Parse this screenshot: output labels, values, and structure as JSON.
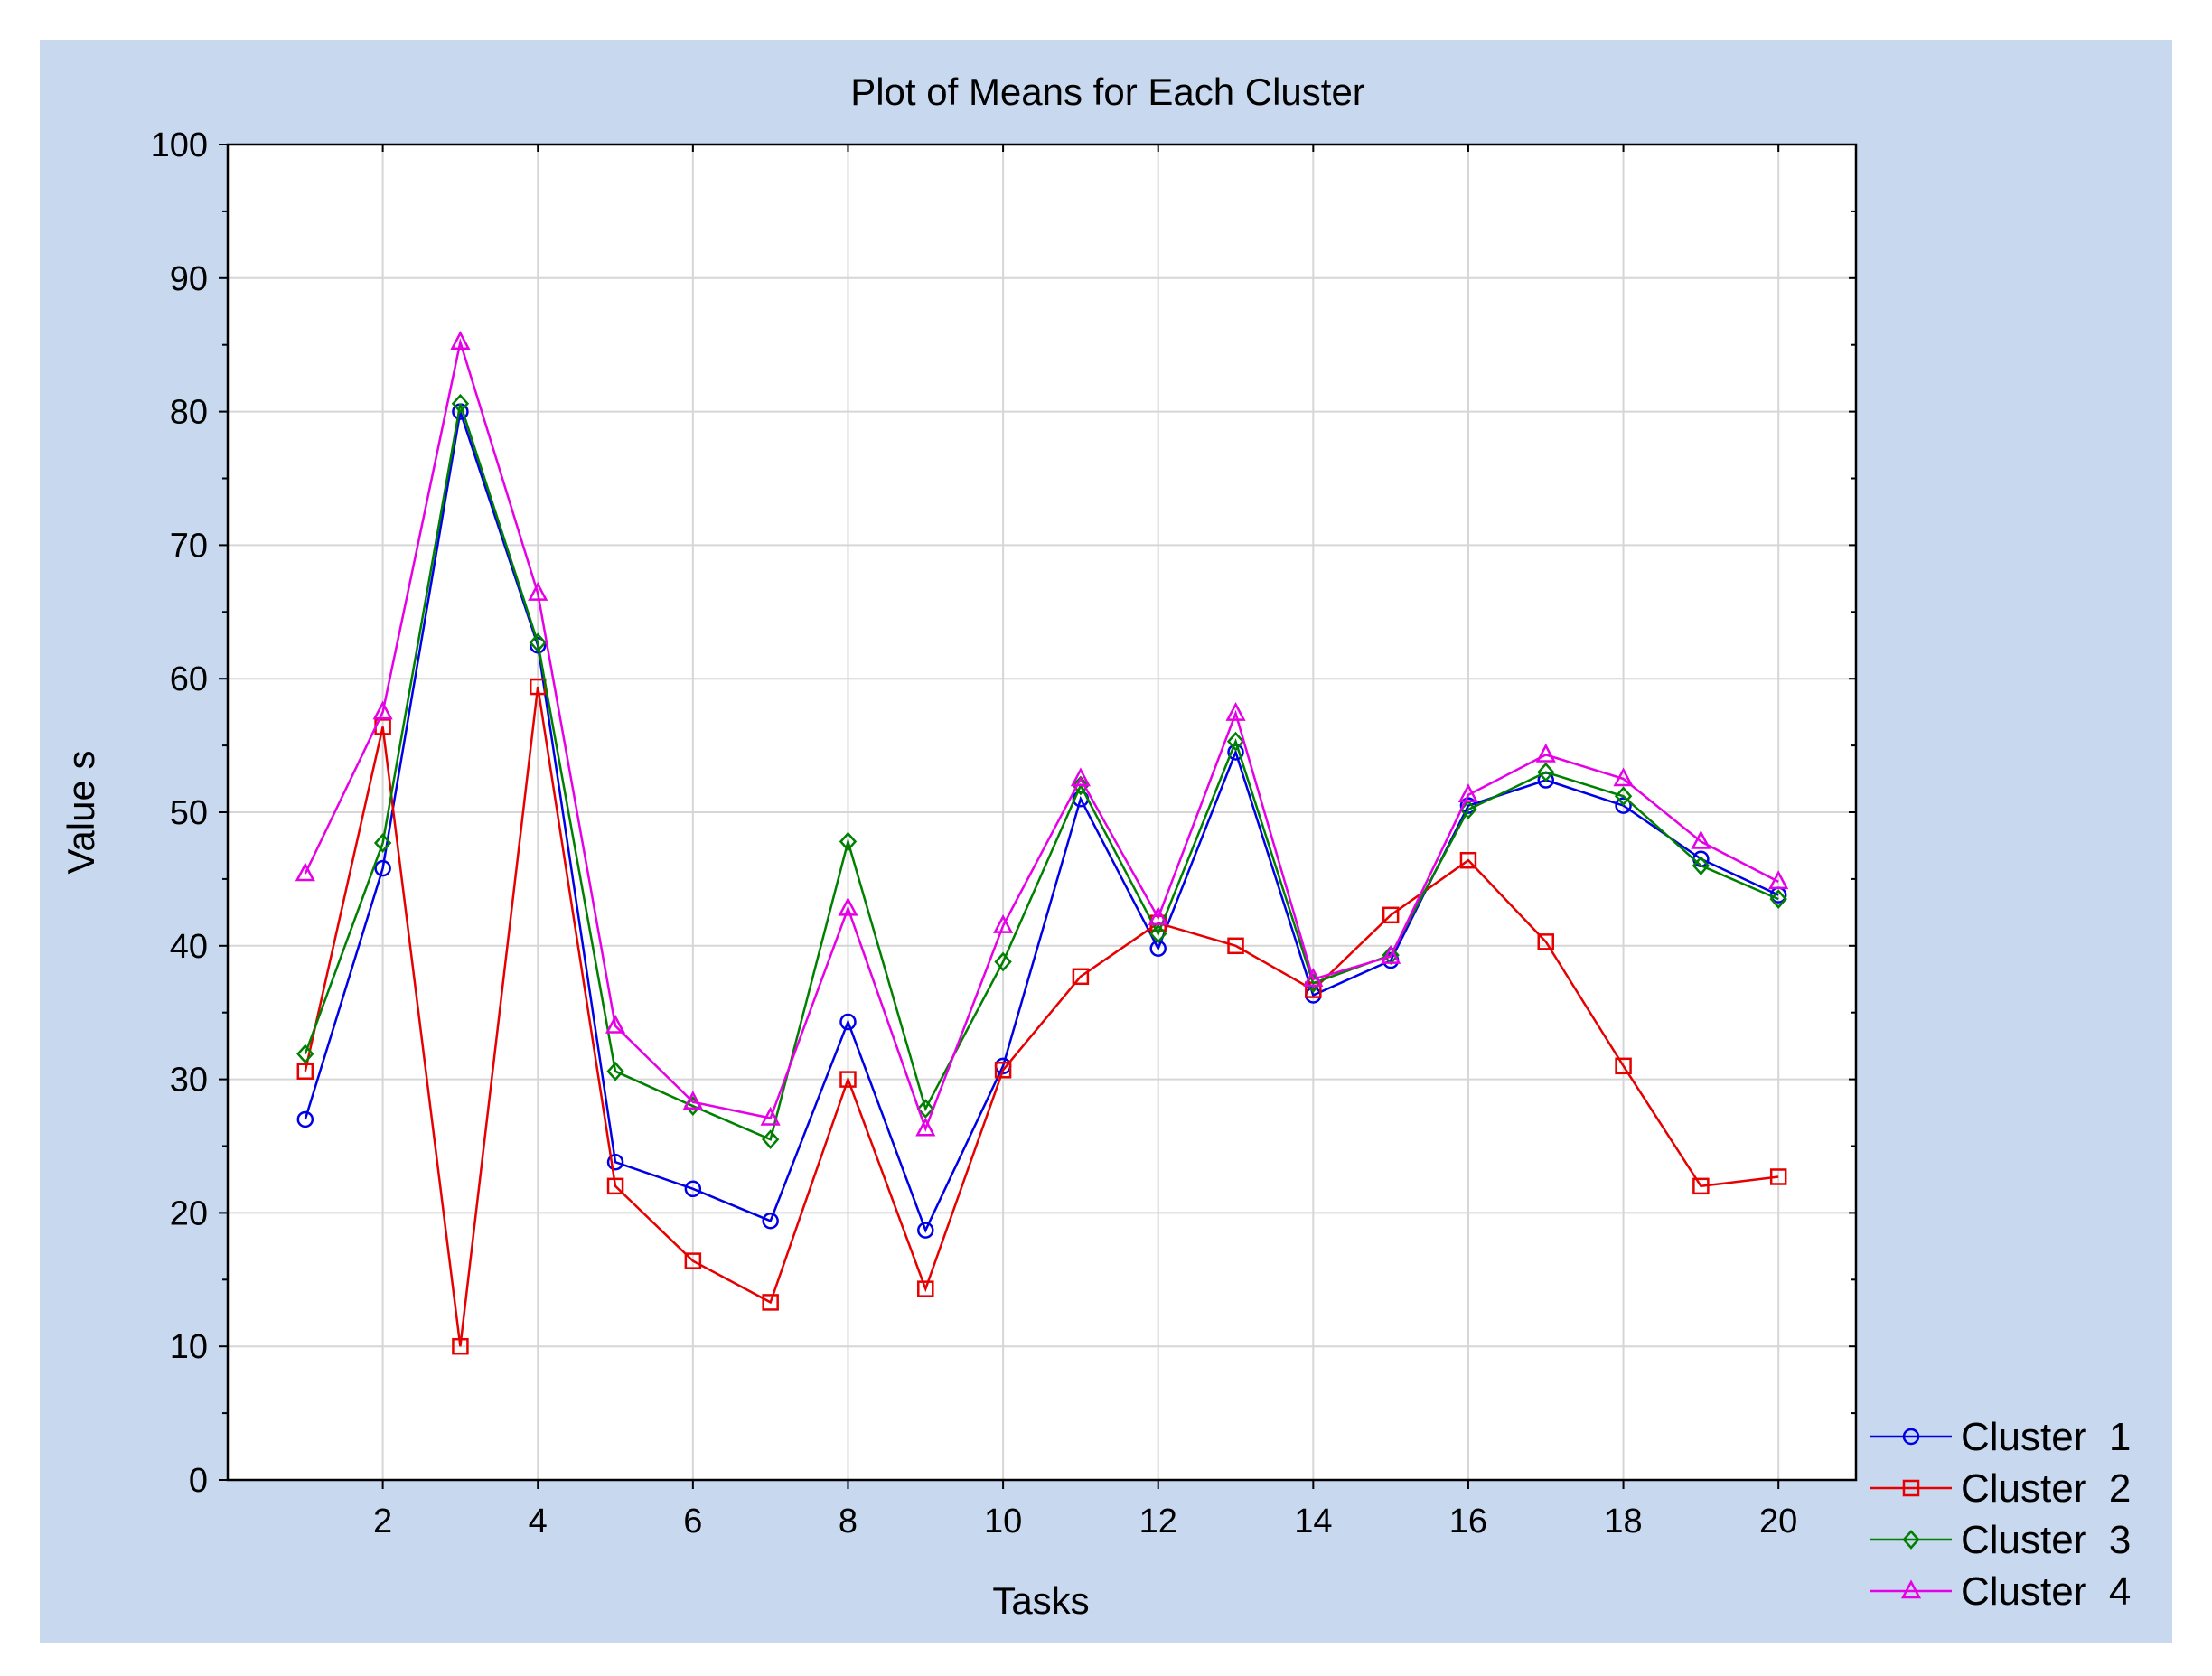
{
  "chart_data": {
    "type": "line",
    "title": "Plot of Means for Each Cluster",
    "xlabel": "Tasks",
    "ylabel": "Value s",
    "x": [
      1,
      2,
      3,
      4,
      5,
      6,
      7,
      8,
      9,
      10,
      11,
      12,
      13,
      14,
      15,
      16,
      17,
      18,
      19,
      20
    ],
    "xlim": [
      0,
      21
    ],
    "ylim": [
      0,
      100
    ],
    "xticks": [
      2,
      4,
      6,
      8,
      10,
      12,
      14,
      16,
      18,
      20
    ],
    "xtick_labels": [
      "2",
      "4",
      "6",
      "8",
      "10",
      "12",
      "14",
      "16",
      "18",
      "20"
    ],
    "yticks": [
      0,
      10,
      20,
      30,
      40,
      50,
      60,
      70,
      80,
      90,
      100
    ],
    "ytick_labels": [
      "0",
      "10",
      "20",
      "30",
      "40",
      "50",
      "60",
      "70",
      "80",
      "90",
      "100"
    ],
    "grid": true,
    "legend_position": "bottom-right-outside",
    "series": [
      {
        "name": "Cluster  1",
        "color": "#0000e6",
        "marker": "circle",
        "values": [
          27.0,
          45.8,
          80.0,
          62.5,
          23.8,
          21.8,
          19.4,
          34.3,
          18.7,
          31.0,
          51.0,
          39.8,
          54.5,
          36.3,
          38.9,
          50.5,
          52.4,
          50.5,
          46.5,
          43.8
        ]
      },
      {
        "name": "Cluster  2",
        "color": "#e60000",
        "marker": "square",
        "values": [
          30.6,
          56.4,
          10.0,
          59.4,
          22.0,
          16.4,
          13.3,
          30.0,
          14.3,
          30.7,
          37.7,
          41.7,
          40.0,
          36.7,
          42.3,
          46.4,
          40.3,
          31.0,
          22.0,
          22.7
        ]
      },
      {
        "name": "Cluster  3",
        "color": "#008000",
        "marker": "diamond",
        "values": [
          31.9,
          47.7,
          80.6,
          62.7,
          30.6,
          28.0,
          25.5,
          47.8,
          27.8,
          38.8,
          52.0,
          40.9,
          55.3,
          37.2,
          39.3,
          50.2,
          53.0,
          51.2,
          46.0,
          43.5
        ]
      },
      {
        "name": "Cluster  4",
        "color": "#e600e6",
        "marker": "triangle",
        "values": [
          45.4,
          57.5,
          85.2,
          66.4,
          34.0,
          28.3,
          27.1,
          42.8,
          26.3,
          41.5,
          52.5,
          42.1,
          57.4,
          37.5,
          39.2,
          51.3,
          54.3,
          52.5,
          47.8,
          44.8
        ]
      }
    ]
  }
}
